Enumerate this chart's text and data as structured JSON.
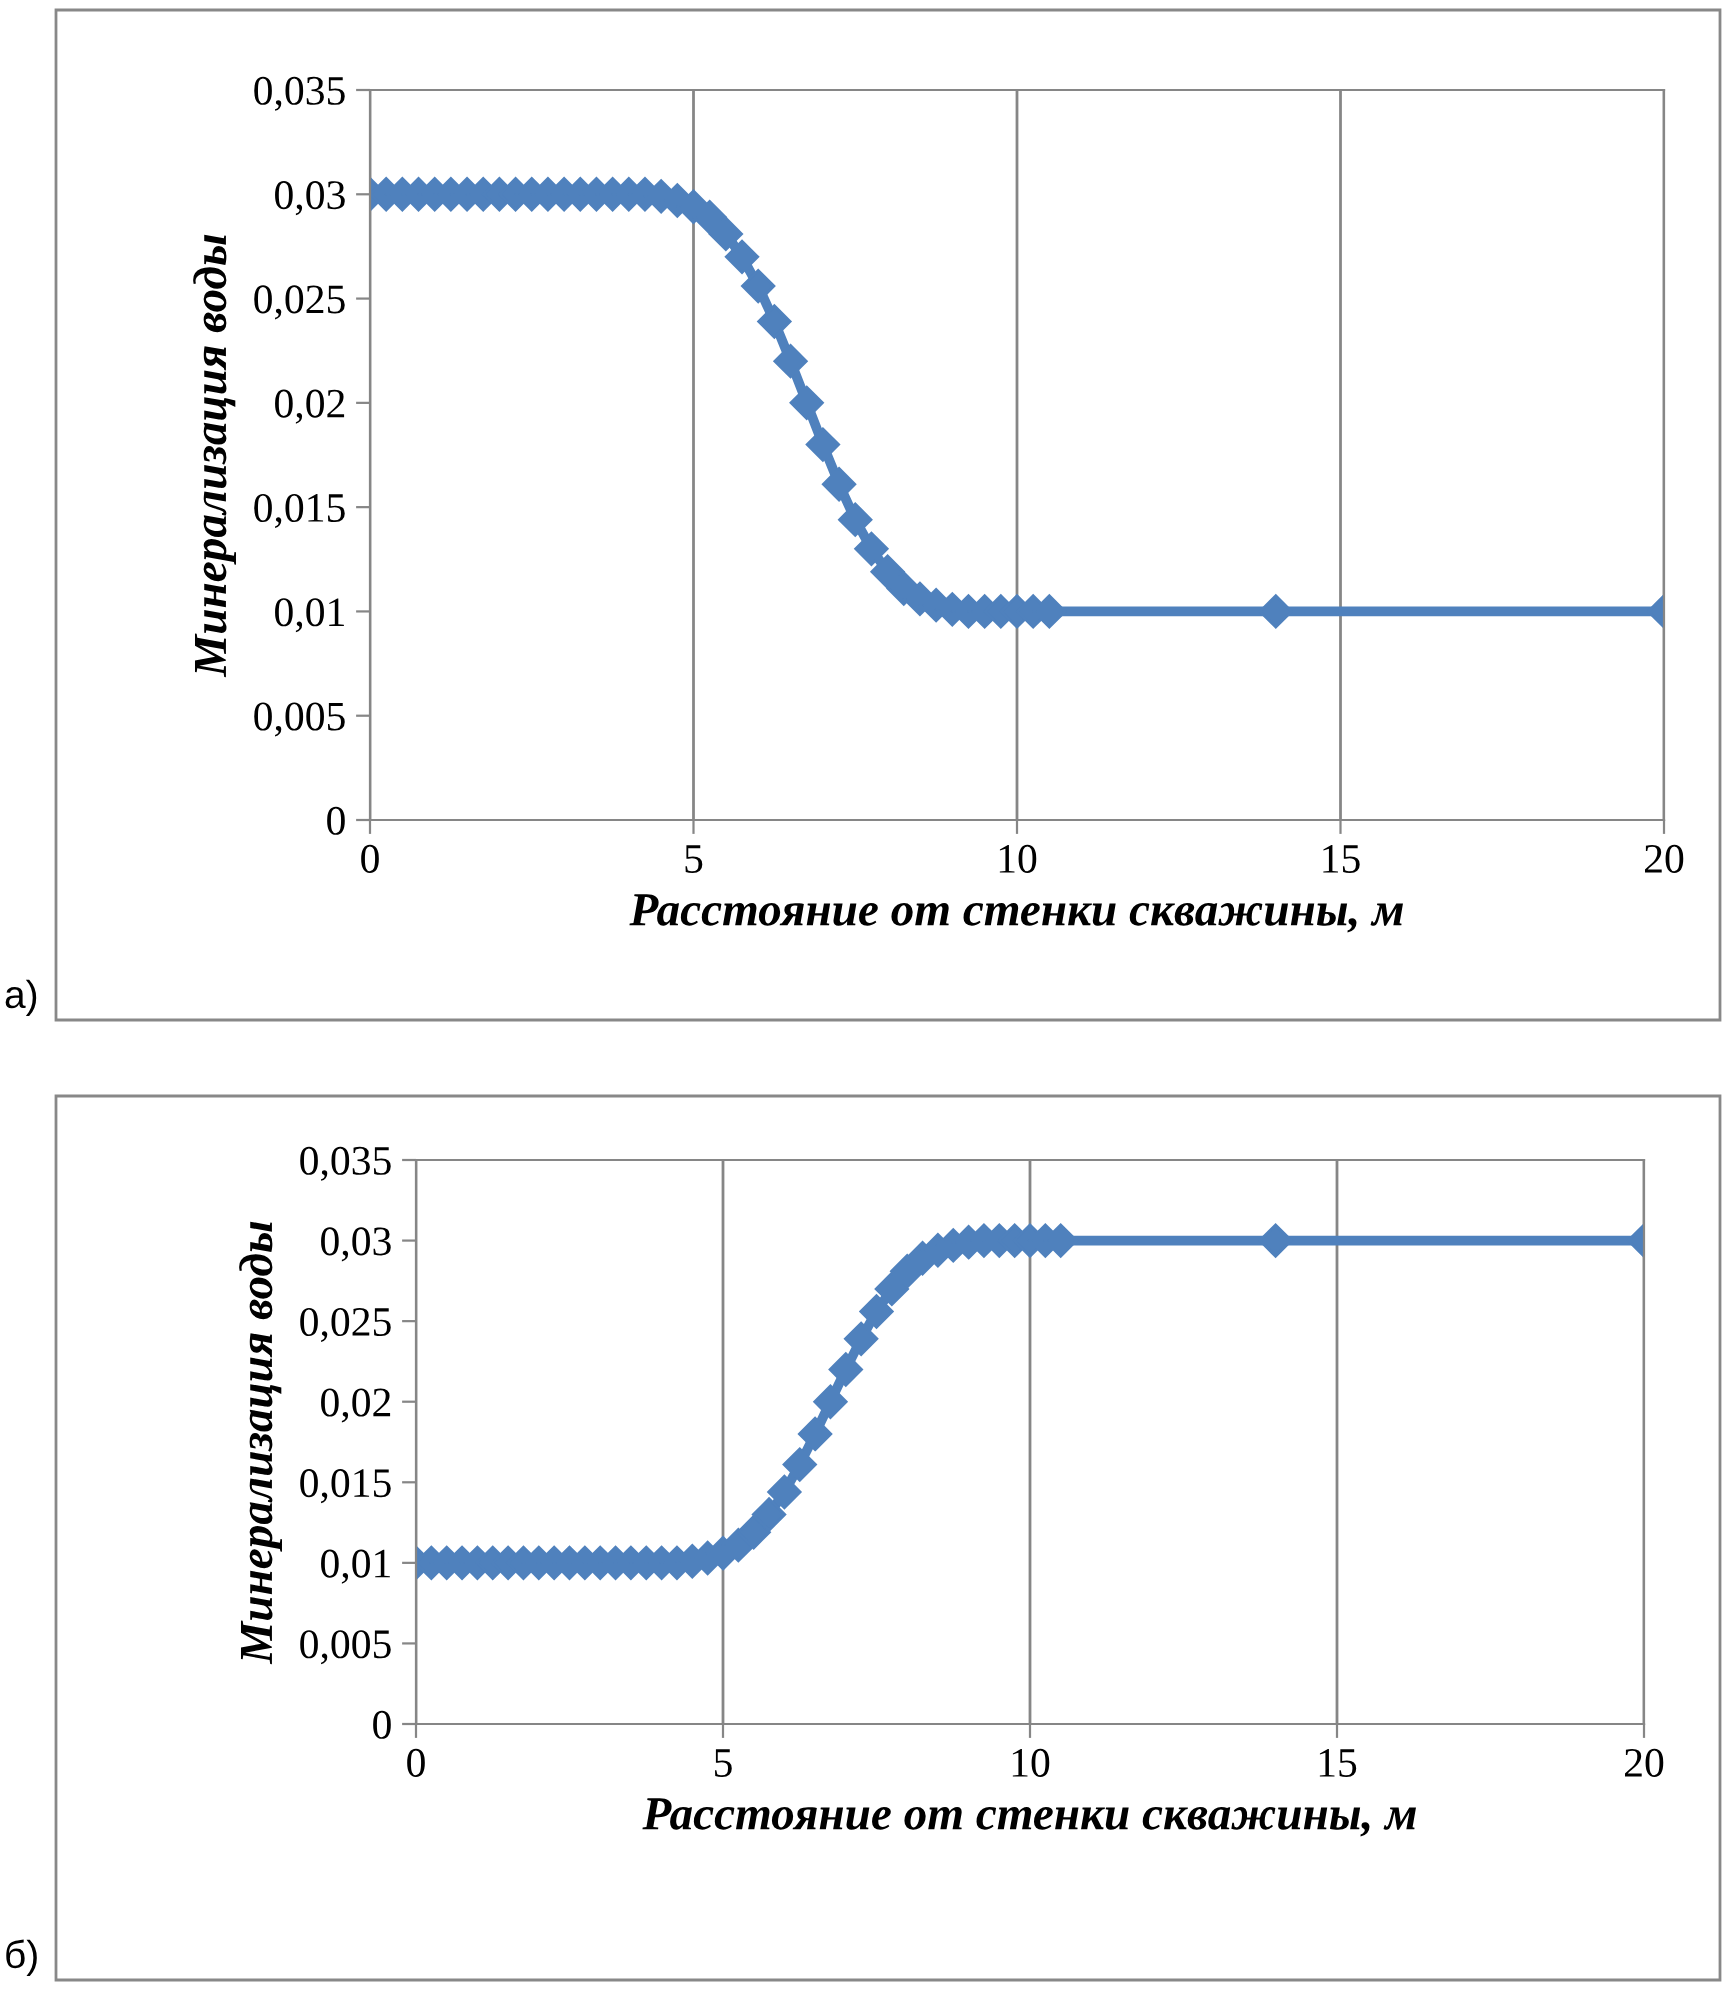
{
  "chart_data": [
    {
      "type": "line",
      "xlabel": "Расстояние от стенки скважины, м",
      "ylabel": "Минерализация воды",
      "annotations": [
        "а)"
      ],
      "x": [
        0,
        0.25,
        0.5,
        0.75,
        1,
        1.25,
        1.5,
        1.75,
        2,
        2.25,
        2.5,
        2.75,
        3,
        3.25,
        3.5,
        3.75,
        4,
        4.25,
        4.5,
        4.75,
        5,
        5.25,
        5.5,
        5.75,
        6,
        6.25,
        6.5,
        6.75,
        7,
        7.25,
        7.5,
        7.75,
        8,
        8.25,
        8.5,
        8.75,
        9,
        9.25,
        9.5,
        9.75,
        10,
        10.25,
        10.5,
        14,
        20
      ],
      "series": [
        {
          "color": "#4f81bd",
          "values": [
            0.03,
            0.03,
            0.03,
            0.03,
            0.03,
            0.03,
            0.03,
            0.03,
            0.03,
            0.03,
            0.03,
            0.03,
            0.03,
            0.03,
            0.03,
            0.03,
            0.03,
            0.03,
            0.0299,
            0.0297,
            0.0294,
            0.0289,
            0.0281,
            0.027,
            0.0256,
            0.0239,
            0.022,
            0.02,
            0.018,
            0.0161,
            0.0144,
            0.013,
            0.0119,
            0.0111,
            0.0106,
            0.0103,
            0.0101,
            0.01,
            0.01,
            0.01,
            0.01,
            0.01,
            0.01,
            0.01,
            0.01
          ]
        }
      ],
      "marker": "diamond",
      "grid": "x",
      "legend": false,
      "xlim": [
        0,
        20
      ],
      "xticks": [
        0,
        5,
        10,
        15,
        20
      ],
      "ylim": [
        0,
        0.035
      ],
      "yticks": [
        0,
        {
          "value": 0.005,
          "label": "0,005"
        },
        {
          "value": 0.01,
          "label": "0,01"
        },
        {
          "value": 0.015,
          "label": "0,015"
        },
        {
          "value": 0.02,
          "label": "0,02"
        },
        {
          "value": 0.025,
          "label": "0,025"
        },
        {
          "value": 0.03,
          "label": "0,03"
        },
        {
          "value": 0.035,
          "label": "0,035"
        }
      ]
    },
    {
      "type": "line",
      "xlabel": "Расстояние от стенки скважины, м",
      "ylabel": "Минерализация воды",
      "annotations": [
        "б)"
      ],
      "x": [
        0,
        0.25,
        0.5,
        0.75,
        1,
        1.25,
        1.5,
        1.75,
        2,
        2.25,
        2.5,
        2.75,
        3,
        3.25,
        3.5,
        3.75,
        4,
        4.25,
        4.5,
        4.75,
        5,
        5.25,
        5.5,
        5.75,
        6,
        6.25,
        6.5,
        6.75,
        7,
        7.25,
        7.5,
        7.75,
        8,
        8.25,
        8.5,
        8.75,
        9,
        9.25,
        9.5,
        9.75,
        10,
        10.25,
        10.5,
        14,
        20
      ],
      "series": [
        {
          "color": "#4f81bd",
          "values": [
            0.01,
            0.01,
            0.01,
            0.01,
            0.01,
            0.01,
            0.01,
            0.01,
            0.01,
            0.01,
            0.01,
            0.01,
            0.01,
            0.01,
            0.01,
            0.01,
            0.01,
            0.01,
            0.0101,
            0.0103,
            0.0106,
            0.0111,
            0.0119,
            0.013,
            0.0144,
            0.0161,
            0.018,
            0.02,
            0.022,
            0.0239,
            0.0256,
            0.027,
            0.0281,
            0.0289,
            0.0294,
            0.0297,
            0.0299,
            0.03,
            0.03,
            0.03,
            0.03,
            0.03,
            0.03,
            0.03,
            0.03
          ]
        }
      ],
      "marker": "diamond",
      "grid": "x",
      "legend": false,
      "xlim": [
        0,
        20
      ],
      "xticks": [
        0,
        5,
        10,
        15,
        20
      ],
      "ylim": [
        0,
        0.035
      ],
      "yticks": [
        0,
        {
          "value": 0.005,
          "label": "0,005"
        },
        {
          "value": 0.01,
          "label": "0,01"
        },
        {
          "value": 0.015,
          "label": "0,015"
        },
        {
          "value": 0.02,
          "label": "0,02"
        },
        {
          "value": 0.025,
          "label": "0,025"
        },
        {
          "value": 0.03,
          "label": "0,03"
        },
        {
          "value": 0.035,
          "label": "0,035"
        }
      ]
    }
  ]
}
